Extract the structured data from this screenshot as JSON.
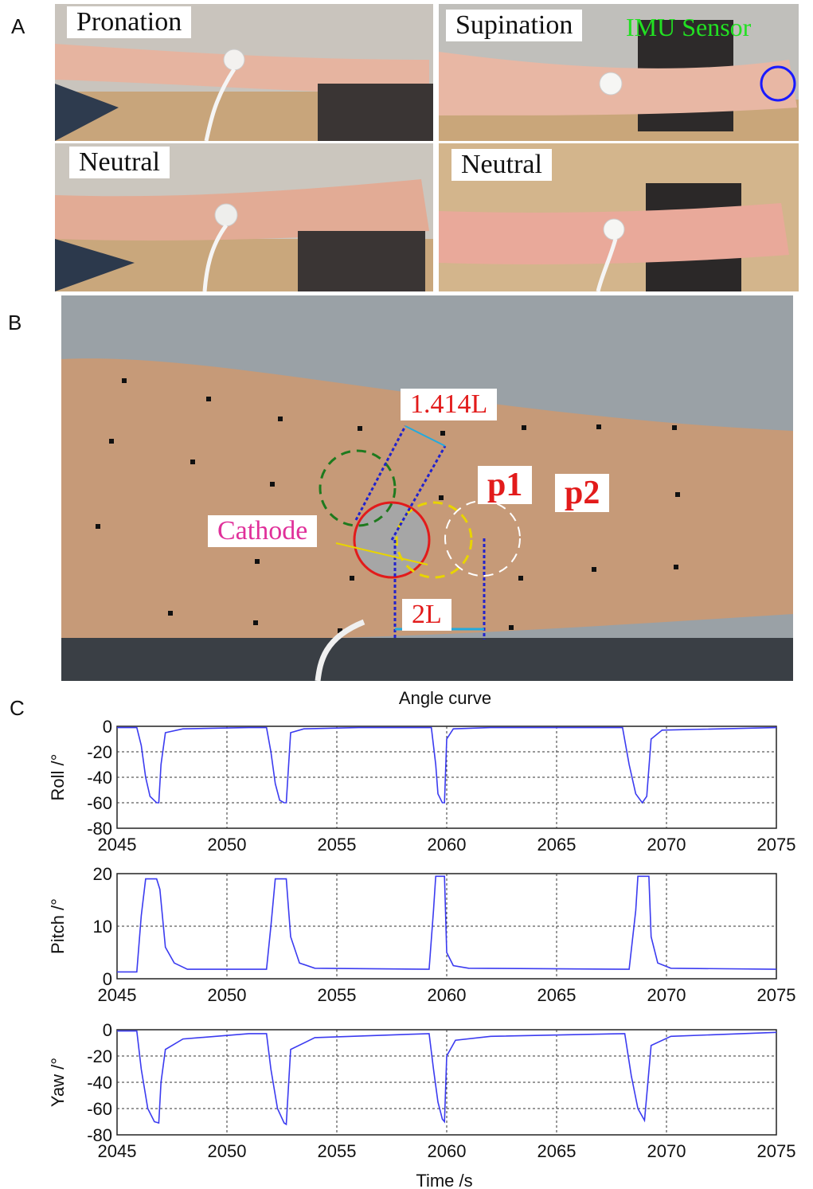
{
  "panels": {
    "a": "A",
    "b": "B",
    "c": "C"
  },
  "panel_a": {
    "labels": {
      "pronation": "Pronation",
      "supination": "Supination",
      "imu": "IMU Sensor",
      "neutral_left": "Neutral",
      "neutral_right": "Neutral"
    }
  },
  "panel_b": {
    "labels": {
      "dist_diag": "1.414L",
      "p1": "p1",
      "p2": "p2",
      "cathode": "Cathode",
      "dist_h": "2L"
    }
  },
  "colors": {
    "line": "#3b3bf0",
    "grid": "#333333",
    "imu_text": "#22e022",
    "cathode_text": "#e0309a",
    "marker_red": "#e21b1b"
  },
  "chart_data": [
    {
      "type": "line",
      "title": "Angle curve",
      "xlabel": "",
      "ylabel": "Roll /°",
      "xlim": [
        2045,
        2075
      ],
      "ylim": [
        -80,
        0
      ],
      "xticks": [
        2045,
        2050,
        2055,
        2060,
        2065,
        2070,
        2075
      ],
      "yticks": [
        0,
        -20,
        -40,
        -60,
        -80
      ],
      "grid": true,
      "x": [
        2045,
        2045.9,
        2046.1,
        2046.3,
        2046.5,
        2046.8,
        2046.9,
        2047.0,
        2047.2,
        2048,
        2051,
        2051.8,
        2052.0,
        2052.2,
        2052.4,
        2052.6,
        2052.7,
        2052.9,
        2053.5,
        2056,
        2059.3,
        2059.5,
        2059.6,
        2059.8,
        2059.9,
        2060.0,
        2060.3,
        2062,
        2068.0,
        2068.3,
        2068.6,
        2068.9,
        2069.1,
        2069.3,
        2069.8,
        2075
      ],
      "values": [
        -1,
        -1,
        -15,
        -40,
        -55,
        -60,
        -60,
        -30,
        -5,
        -2,
        -1,
        -1,
        -20,
        -45,
        -58,
        -60,
        -60,
        -5,
        -2,
        -1,
        -1,
        -30,
        -53,
        -60,
        -60,
        -10,
        -2,
        -1,
        -1,
        -30,
        -53,
        -60,
        -55,
        -10,
        -3,
        -1
      ]
    },
    {
      "type": "line",
      "title": "",
      "xlabel": "",
      "ylabel": "Pitch /°",
      "xlim": [
        2045,
        2075
      ],
      "ylim": [
        0,
        20
      ],
      "xticks": [
        2045,
        2050,
        2055,
        2060,
        2065,
        2070,
        2075
      ],
      "yticks": [
        20,
        10,
        0
      ],
      "grid": true,
      "x": [
        2045,
        2045.9,
        2046.1,
        2046.3,
        2046.8,
        2046.95,
        2047.2,
        2047.6,
        2048.2,
        2051.8,
        2052.0,
        2052.2,
        2052.7,
        2052.9,
        2053.3,
        2054,
        2059.2,
        2059.4,
        2059.5,
        2059.9,
        2060.0,
        2060.3,
        2061,
        2068.3,
        2068.6,
        2068.7,
        2069.2,
        2069.3,
        2069.6,
        2070.2,
        2075
      ],
      "values": [
        1.3,
        1.3,
        12,
        19,
        19,
        17,
        6,
        3,
        1.8,
        1.8,
        10,
        19,
        19,
        8,
        3,
        2,
        1.8,
        13,
        19.5,
        19.5,
        5,
        2.5,
        2,
        1.8,
        13,
        19.5,
        19.5,
        8,
        3,
        2,
        1.8
      ]
    },
    {
      "type": "line",
      "title": "",
      "xlabel": "Time /s",
      "ylabel": "Yaw /°",
      "xlim": [
        2045,
        2075
      ],
      "ylim": [
        -80,
        0
      ],
      "xticks": [
        2045,
        2050,
        2055,
        2060,
        2065,
        2070,
        2075
      ],
      "yticks": [
        0,
        -20,
        -40,
        -60,
        -80
      ],
      "grid": true,
      "x": [
        2045,
        2045.9,
        2046.1,
        2046.4,
        2046.7,
        2046.9,
        2047.0,
        2047.2,
        2048,
        2051,
        2051.8,
        2052.0,
        2052.3,
        2052.6,
        2052.7,
        2052.9,
        2054,
        2059.2,
        2059.4,
        2059.6,
        2059.8,
        2059.9,
        2060.0,
        2060.4,
        2062,
        2068.1,
        2068.4,
        2068.7,
        2069.0,
        2069.1,
        2069.3,
        2070.2,
        2075
      ],
      "values": [
        -1,
        -1,
        -30,
        -60,
        -70,
        -71,
        -40,
        -15,
        -7,
        -3,
        -3,
        -30,
        -60,
        -71,
        -72,
        -15,
        -6,
        -3,
        -30,
        -55,
        -68,
        -70,
        -20,
        -8,
        -5,
        -3,
        -35,
        -60,
        -69,
        -50,
        -12,
        -5,
        -2
      ]
    }
  ]
}
